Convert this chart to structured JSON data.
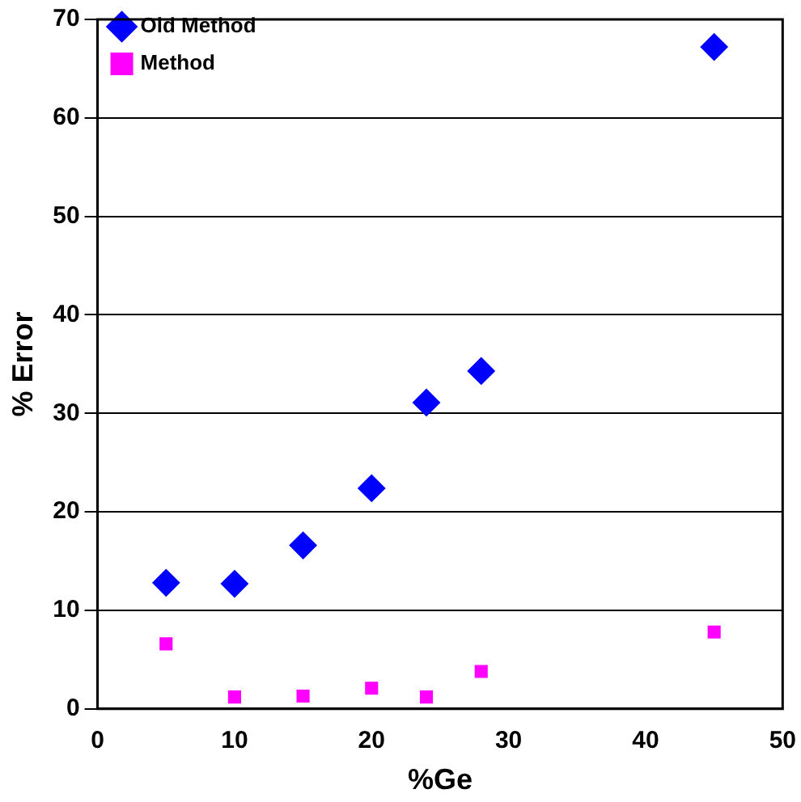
{
  "chart_data": {
    "type": "scatter",
    "xlabel": "%Ge",
    "ylabel": "% Error",
    "xlim": [
      0,
      50
    ],
    "xticks": [
      0,
      10,
      20,
      30,
      40,
      50
    ],
    "ylim": [
      0,
      70
    ],
    "yticks": [
      0,
      10,
      20,
      30,
      40,
      50,
      60,
      70
    ],
    "grid": "y",
    "legend": "top left",
    "series": [
      {
        "name": "Old Method",
        "color": "#0000ff",
        "marker": "diamond",
        "x": [
          5,
          10,
          15,
          20,
          24,
          28,
          45
        ],
        "values": [
          12.8,
          12.7,
          16.6,
          22.4,
          31.1,
          34.3,
          67.2
        ]
      },
      {
        "name": "Method",
        "color": "#ff00ff",
        "marker": "square",
        "x": [
          5,
          10,
          15,
          20,
          24,
          28,
          45
        ],
        "values": [
          6.6,
          1.2,
          1.3,
          2.1,
          1.2,
          3.8,
          7.8
        ]
      }
    ]
  }
}
